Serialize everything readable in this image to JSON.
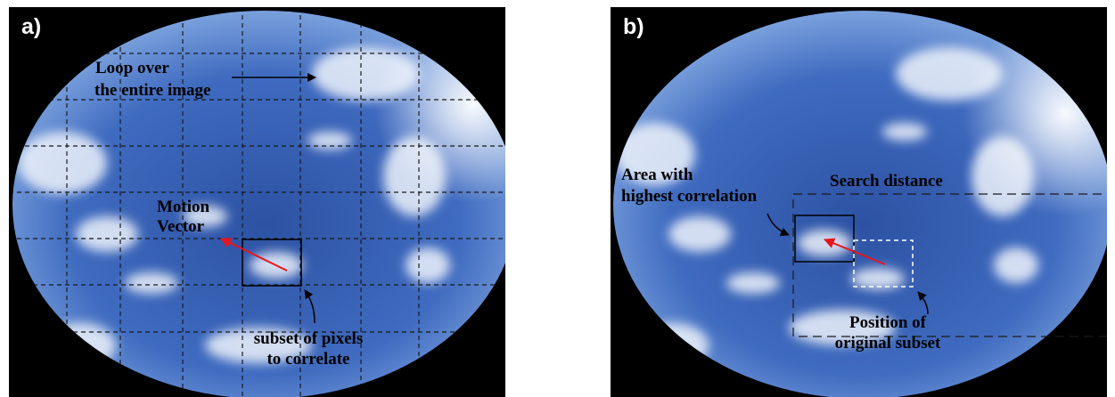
{
  "panel_a": {
    "label": "a)",
    "annotations": {
      "loop_line1": "Loop over",
      "loop_line2": "the entire image",
      "motion_line1": "Motion",
      "motion_line2": "Vector",
      "subset_line1": "subset of pixels",
      "subset_line2": "to correlate"
    }
  },
  "panel_b": {
    "label": "b)",
    "annotations": {
      "area_line1": "Area with",
      "area_line2": "highest correlation",
      "search_distance": "Search distance",
      "position_line1": "Position of",
      "position_line2": "original subset"
    }
  },
  "colors": {
    "sky_center": "#2f56a8",
    "sky_edge": "#6d94d8",
    "background": "#000000",
    "cloud": "#eef3fb",
    "motion_vector": "#e8141e",
    "grid": "#1a1a1a",
    "subset_box_dashed": "#ffffff"
  }
}
